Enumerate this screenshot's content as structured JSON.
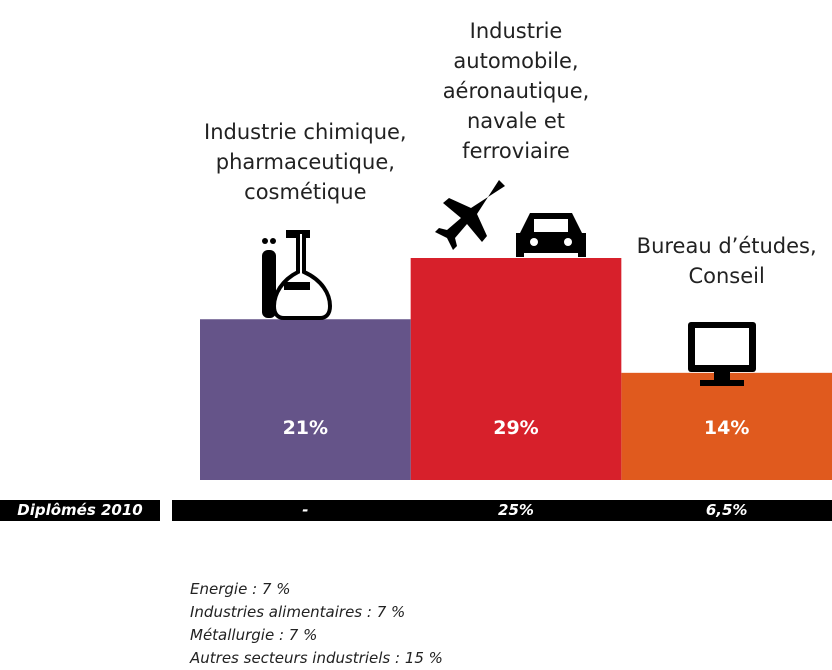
{
  "chart_data": {
    "type": "bar",
    "categories": [
      "Industrie chimique,\npharmaceutique,\ncosmétique",
      "Industrie\nautomobile,\naéronautique,\nnavale et\nferroviaire",
      "Bureau d’études,\nConseil"
    ],
    "values": [
      21,
      29,
      14
    ],
    "value_labels": [
      "21%",
      "29%",
      "14%"
    ],
    "colors": [
      "#655489",
      "#d7202b",
      "#e05a1e"
    ],
    "row": {
      "label": "Diplômés 2010",
      "values": [
        "-",
        "25%",
        "6,5%"
      ]
    },
    "notes": [
      "Energie : 7 %",
      "Industries alimentaires : 7 %",
      "Métallurgie : 7 %",
      "Autres secteurs industriels : 15 %"
    ]
  }
}
